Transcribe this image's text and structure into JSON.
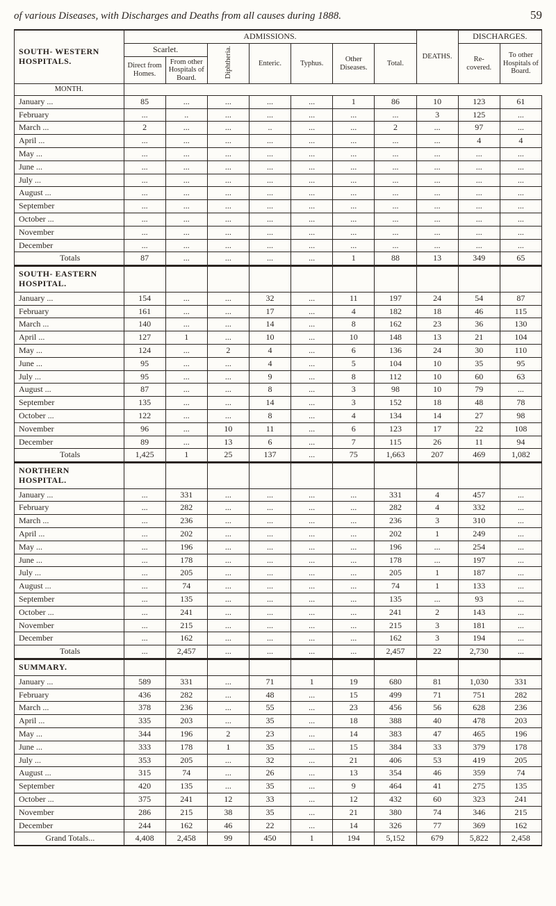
{
  "header": {
    "running_title": "of various Diseases, with Discharges and Deaths from all causes during 1888.",
    "page_number": "59"
  },
  "top_headers": {
    "admissions": "ADMISSIONS.",
    "discharges": "DISCHARGES.",
    "month": "MONTH.",
    "scarlet": "Scarlet.",
    "direct": "Direct from Homes.",
    "from_other": "From other Hospitals of Board.",
    "diphtheria": "Diphtheria.",
    "enteric": "Enteric.",
    "typhus": "Typhus.",
    "other_diseases": "Other Diseases.",
    "total": "Total.",
    "deaths": "DEATHS.",
    "recovered": "Re- covered.",
    "to_other": "To other Hospitals of Board."
  },
  "sections": [
    {
      "title": "SOUTH- WESTERN HOSPITALS.",
      "rows": [
        {
          "month": "January ...",
          "direct": "85",
          "from_other": "...",
          "diph": "...",
          "enteric": "...",
          "typhus": "...",
          "other": "1",
          "total": "86",
          "deaths": "10",
          "recov": "123",
          "to_other": "61"
        },
        {
          "month": "February",
          "direct": "...",
          "from_other": "..",
          "diph": "...",
          "enteric": "...",
          "typhus": "...",
          "other": "...",
          "total": "...",
          "deaths": "3",
          "recov": "125",
          "to_other": "..."
        },
        {
          "month": "March ...",
          "direct": "2",
          "from_other": "...",
          "diph": "...",
          "enteric": "..",
          "typhus": "...",
          "other": "...",
          "total": "2",
          "deaths": "...",
          "recov": "97",
          "to_other": "..."
        },
        {
          "month": "April ...",
          "direct": "...",
          "from_other": "...",
          "diph": "...",
          "enteric": "...",
          "typhus": "...",
          "other": "...",
          "total": "...",
          "deaths": "...",
          "recov": "4",
          "to_other": "4"
        },
        {
          "month": "May ...",
          "direct": "...",
          "from_other": "...",
          "diph": "...",
          "enteric": "...",
          "typhus": "...",
          "other": "...",
          "total": "...",
          "deaths": "...",
          "recov": "...",
          "to_other": "..."
        },
        {
          "month": "June ...",
          "direct": "...",
          "from_other": "...",
          "diph": "...",
          "enteric": "...",
          "typhus": "...",
          "other": "...",
          "total": "...",
          "deaths": "...",
          "recov": "...",
          "to_other": "..."
        },
        {
          "month": "July ...",
          "direct": "...",
          "from_other": "...",
          "diph": "...",
          "enteric": "...",
          "typhus": "...",
          "other": "...",
          "total": "...",
          "deaths": "...",
          "recov": "...",
          "to_other": "..."
        },
        {
          "month": "August ...",
          "direct": "...",
          "from_other": "...",
          "diph": "...",
          "enteric": "...",
          "typhus": "...",
          "other": "...",
          "total": "...",
          "deaths": "...",
          "recov": "...",
          "to_other": "..."
        },
        {
          "month": "September",
          "direct": "...",
          "from_other": "...",
          "diph": "...",
          "enteric": "...",
          "typhus": "...",
          "other": "...",
          "total": "...",
          "deaths": "...",
          "recov": "...",
          "to_other": "..."
        },
        {
          "month": "October ...",
          "direct": "...",
          "from_other": "...",
          "diph": "...",
          "enteric": "...",
          "typhus": "...",
          "other": "...",
          "total": "...",
          "deaths": "...",
          "recov": "...",
          "to_other": "..."
        },
        {
          "month": "November",
          "direct": "...",
          "from_other": "...",
          "diph": "...",
          "enteric": "...",
          "typhus": "...",
          "other": "...",
          "total": "...",
          "deaths": "...",
          "recov": "...",
          "to_other": "..."
        },
        {
          "month": "December",
          "direct": "...",
          "from_other": "...",
          "diph": "...",
          "enteric": "...",
          "typhus": "...",
          "other": "...",
          "total": "...",
          "deaths": "...",
          "recov": "...",
          "to_other": "..."
        }
      ],
      "totals": {
        "label": "Totals",
        "direct": "87",
        "from_other": "...",
        "diph": "...",
        "enteric": "...",
        "typhus": "...",
        "other": "1",
        "total": "88",
        "deaths": "13",
        "recov": "349",
        "to_other": "65"
      }
    },
    {
      "title": "SOUTH- EASTERN HOSPITAL.",
      "rows": [
        {
          "month": "January ...",
          "direct": "154",
          "from_other": "...",
          "diph": "...",
          "enteric": "32",
          "typhus": "...",
          "other": "11",
          "total": "197",
          "deaths": "24",
          "recov": "54",
          "to_other": "87"
        },
        {
          "month": "February",
          "direct": "161",
          "from_other": "...",
          "diph": "...",
          "enteric": "17",
          "typhus": "...",
          "other": "4",
          "total": "182",
          "deaths": "18",
          "recov": "46",
          "to_other": "115"
        },
        {
          "month": "March ...",
          "direct": "140",
          "from_other": "...",
          "diph": "...",
          "enteric": "14",
          "typhus": "...",
          "other": "8",
          "total": "162",
          "deaths": "23",
          "recov": "36",
          "to_other": "130"
        },
        {
          "month": "April ...",
          "direct": "127",
          "from_other": "1",
          "diph": "...",
          "enteric": "10",
          "typhus": "...",
          "other": "10",
          "total": "148",
          "deaths": "13",
          "recov": "21",
          "to_other": "104"
        },
        {
          "month": "May ...",
          "direct": "124",
          "from_other": "...",
          "diph": "2",
          "enteric": "4",
          "typhus": "...",
          "other": "6",
          "total": "136",
          "deaths": "24",
          "recov": "30",
          "to_other": "110"
        },
        {
          "month": "June ...",
          "direct": "95",
          "from_other": "...",
          "diph": "...",
          "enteric": "4",
          "typhus": "...",
          "other": "5",
          "total": "104",
          "deaths": "10",
          "recov": "35",
          "to_other": "95"
        },
        {
          "month": "July ...",
          "direct": "95",
          "from_other": "...",
          "diph": "...",
          "enteric": "9",
          "typhus": "...",
          "other": "8",
          "total": "112",
          "deaths": "10",
          "recov": "60",
          "to_other": "63"
        },
        {
          "month": "August ...",
          "direct": "87",
          "from_other": "...",
          "diph": "...",
          "enteric": "8",
          "typhus": "...",
          "other": "3",
          "total": "98",
          "deaths": "10",
          "recov": "79",
          "to_other": "..."
        },
        {
          "month": "September",
          "direct": "135",
          "from_other": "...",
          "diph": "...",
          "enteric": "14",
          "typhus": "...",
          "other": "3",
          "total": "152",
          "deaths": "18",
          "recov": "48",
          "to_other": "78"
        },
        {
          "month": "October ...",
          "direct": "122",
          "from_other": "...",
          "diph": "...",
          "enteric": "8",
          "typhus": "...",
          "other": "4",
          "total": "134",
          "deaths": "14",
          "recov": "27",
          "to_other": "98"
        },
        {
          "month": "November",
          "direct": "96",
          "from_other": "...",
          "diph": "10",
          "enteric": "11",
          "typhus": "...",
          "other": "6",
          "total": "123",
          "deaths": "17",
          "recov": "22",
          "to_other": "108"
        },
        {
          "month": "December",
          "direct": "89",
          "from_other": "...",
          "diph": "13",
          "enteric": "6",
          "typhus": "...",
          "other": "7",
          "total": "115",
          "deaths": "26",
          "recov": "11",
          "to_other": "94"
        }
      ],
      "totals": {
        "label": "Totals",
        "direct": "1,425",
        "from_other": "1",
        "diph": "25",
        "enteric": "137",
        "typhus": "...",
        "other": "75",
        "total": "1,663",
        "deaths": "207",
        "recov": "469",
        "to_other": "1,082"
      }
    },
    {
      "title": "NORTHERN HOSPITAL.",
      "rows": [
        {
          "month": "January ...",
          "direct": "...",
          "from_other": "331",
          "diph": "...",
          "enteric": "...",
          "typhus": "...",
          "other": "...",
          "total": "331",
          "deaths": "4",
          "recov": "457",
          "to_other": "..."
        },
        {
          "month": "February",
          "direct": "...",
          "from_other": "282",
          "diph": "...",
          "enteric": "...",
          "typhus": "...",
          "other": "...",
          "total": "282",
          "deaths": "4",
          "recov": "332",
          "to_other": "..."
        },
        {
          "month": "March ...",
          "direct": "...",
          "from_other": "236",
          "diph": "...",
          "enteric": "...",
          "typhus": "...",
          "other": "...",
          "total": "236",
          "deaths": "3",
          "recov": "310",
          "to_other": "..."
        },
        {
          "month": "April ...",
          "direct": "...",
          "from_other": "202",
          "diph": "...",
          "enteric": "...",
          "typhus": "...",
          "other": "...",
          "total": "202",
          "deaths": "1",
          "recov": "249",
          "to_other": "..."
        },
        {
          "month": "May ...",
          "direct": "...",
          "from_other": "196",
          "diph": "...",
          "enteric": "...",
          "typhus": "...",
          "other": "...",
          "total": "196",
          "deaths": "...",
          "recov": "254",
          "to_other": "..."
        },
        {
          "month": "June ...",
          "direct": "...",
          "from_other": "178",
          "diph": "...",
          "enteric": "...",
          "typhus": "...",
          "other": "...",
          "total": "178",
          "deaths": "...",
          "recov": "197",
          "to_other": "..."
        },
        {
          "month": "July ...",
          "direct": "...",
          "from_other": "205",
          "diph": "...",
          "enteric": "...",
          "typhus": "...",
          "other": "...",
          "total": "205",
          "deaths": "1",
          "recov": "187",
          "to_other": "..."
        },
        {
          "month": "August ...",
          "direct": "...",
          "from_other": "74",
          "diph": "...",
          "enteric": "...",
          "typhus": "...",
          "other": "...",
          "total": "74",
          "deaths": "1",
          "recov": "133",
          "to_other": "..."
        },
        {
          "month": "September",
          "direct": "...",
          "from_other": "135",
          "diph": "...",
          "enteric": "...",
          "typhus": "...",
          "other": "...",
          "total": "135",
          "deaths": "...",
          "recov": "93",
          "to_other": "..."
        },
        {
          "month": "October ...",
          "direct": "...",
          "from_other": "241",
          "diph": "...",
          "enteric": "...",
          "typhus": "...",
          "other": "...",
          "total": "241",
          "deaths": "2",
          "recov": "143",
          "to_other": "..."
        },
        {
          "month": "November",
          "direct": "...",
          "from_other": "215",
          "diph": "...",
          "enteric": "...",
          "typhus": "...",
          "other": "...",
          "total": "215",
          "deaths": "3",
          "recov": "181",
          "to_other": "..."
        },
        {
          "month": "December",
          "direct": "...",
          "from_other": "162",
          "diph": "...",
          "enteric": "...",
          "typhus": "...",
          "other": "...",
          "total": "162",
          "deaths": "3",
          "recov": "194",
          "to_other": "..."
        }
      ],
      "totals": {
        "label": "Totals",
        "direct": "...",
        "from_other": "2,457",
        "diph": "...",
        "enteric": "...",
        "typhus": "...",
        "other": "...",
        "total": "2,457",
        "deaths": "22",
        "recov": "2,730",
        "to_other": "..."
      }
    },
    {
      "title": "SUMMARY.",
      "rows": [
        {
          "month": "January ...",
          "direct": "589",
          "from_other": "331",
          "diph": "...",
          "enteric": "71",
          "typhus": "1",
          "other": "19",
          "total": "680",
          "deaths": "81",
          "recov": "1,030",
          "to_other": "331"
        },
        {
          "month": "February",
          "direct": "436",
          "from_other": "282",
          "diph": "...",
          "enteric": "48",
          "typhus": "...",
          "other": "15",
          "total": "499",
          "deaths": "71",
          "recov": "751",
          "to_other": "282"
        },
        {
          "month": "March ...",
          "direct": "378",
          "from_other": "236",
          "diph": "...",
          "enteric": "55",
          "typhus": "...",
          "other": "23",
          "total": "456",
          "deaths": "56",
          "recov": "628",
          "to_other": "236"
        },
        {
          "month": "April ...",
          "direct": "335",
          "from_other": "203",
          "diph": "...",
          "enteric": "35",
          "typhus": "...",
          "other": "18",
          "total": "388",
          "deaths": "40",
          "recov": "478",
          "to_other": "203"
        },
        {
          "month": "May ...",
          "direct": "344",
          "from_other": "196",
          "diph": "2",
          "enteric": "23",
          "typhus": "...",
          "other": "14",
          "total": "383",
          "deaths": "47",
          "recov": "465",
          "to_other": "196"
        },
        {
          "month": "June ...",
          "direct": "333",
          "from_other": "178",
          "diph": "1",
          "enteric": "35",
          "typhus": "...",
          "other": "15",
          "total": "384",
          "deaths": "33",
          "recov": "379",
          "to_other": "178"
        },
        {
          "month": "July ...",
          "direct": "353",
          "from_other": "205",
          "diph": "...",
          "enteric": "32",
          "typhus": "...",
          "other": "21",
          "total": "406",
          "deaths": "53",
          "recov": "419",
          "to_other": "205"
        },
        {
          "month": "August ...",
          "direct": "315",
          "from_other": "74",
          "diph": "...",
          "enteric": "26",
          "typhus": "...",
          "other": "13",
          "total": "354",
          "deaths": "46",
          "recov": "359",
          "to_other": "74"
        },
        {
          "month": "September",
          "direct": "420",
          "from_other": "135",
          "diph": "...",
          "enteric": "35",
          "typhus": "...",
          "other": "9",
          "total": "464",
          "deaths": "41",
          "recov": "275",
          "to_other": "135"
        },
        {
          "month": "October ...",
          "direct": "375",
          "from_other": "241",
          "diph": "12",
          "enteric": "33",
          "typhus": "...",
          "other": "12",
          "total": "432",
          "deaths": "60",
          "recov": "323",
          "to_other": "241"
        },
        {
          "month": "November",
          "direct": "286",
          "from_other": "215",
          "diph": "38",
          "enteric": "35",
          "typhus": "...",
          "other": "21",
          "total": "380",
          "deaths": "74",
          "recov": "346",
          "to_other": "215"
        },
        {
          "month": "December",
          "direct": "244",
          "from_other": "162",
          "diph": "46",
          "enteric": "22",
          "typhus": "...",
          "other": "14",
          "total": "326",
          "deaths": "77",
          "recov": "369",
          "to_other": "162"
        }
      ],
      "totals": {
        "label": "Grand Totals...",
        "direct": "4,408",
        "from_other": "2,458",
        "diph": "99",
        "enteric": "450",
        "typhus": "1",
        "other": "194",
        "total": "5,152",
        "deaths": "679",
        "recov": "5,822",
        "to_other": "2,458"
      }
    }
  ]
}
